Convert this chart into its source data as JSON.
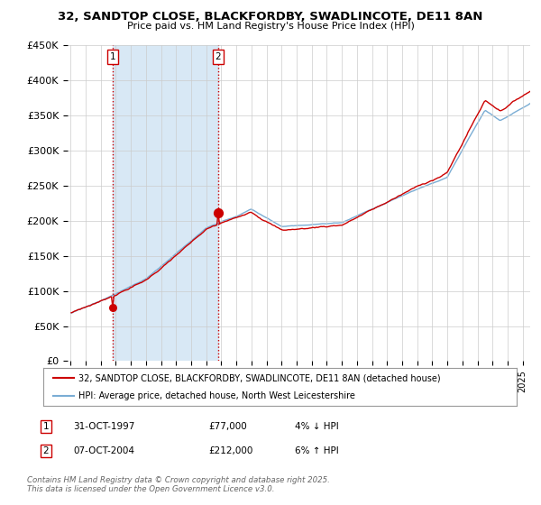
{
  "title_line1": "32, SANDTOP CLOSE, BLACKFORDBY, SWADLINCOTE, DE11 8AN",
  "title_line2": "Price paid vs. HM Land Registry's House Price Index (HPI)",
  "background_color": "#ffffff",
  "plot_bg_color": "#ffffff",
  "grid_color": "#cccccc",
  "sale1_price": 77000,
  "sale1_label": "1",
  "sale2_price": 212000,
  "sale2_label": "2",
  "sale1_year": 1997.79,
  "sale2_year": 2004.79,
  "legend_line1": "32, SANDTOP CLOSE, BLACKFORDBY, SWADLINCOTE, DE11 8AN (detached house)",
  "legend_line2": "HPI: Average price, detached house, North West Leicestershire",
  "table_row1": [
    "1",
    "31-OCT-1997",
    "£77,000",
    "4% ↓ HPI"
  ],
  "table_row2": [
    "2",
    "07-OCT-2004",
    "£212,000",
    "6% ↑ HPI"
  ],
  "footer": "Contains HM Land Registry data © Crown copyright and database right 2025.\nThis data is licensed under the Open Government Licence v3.0.",
  "hpi_color": "#7aadd4",
  "price_color": "#cc0000",
  "sale_marker_color": "#cc0000",
  "vline_color": "#cc0000",
  "shade_color": "#d8e8f5",
  "ylim_min": 0,
  "ylim_max": 450000,
  "ytick_values": [
    0,
    50000,
    100000,
    150000,
    200000,
    250000,
    300000,
    350000,
    400000,
    450000
  ],
  "ytick_labels": [
    "£0",
    "£50K",
    "£100K",
    "£150K",
    "£200K",
    "£250K",
    "£300K",
    "£350K",
    "£400K",
    "£450K"
  ],
  "xstart_year": 1995,
  "xend_year": 2025
}
